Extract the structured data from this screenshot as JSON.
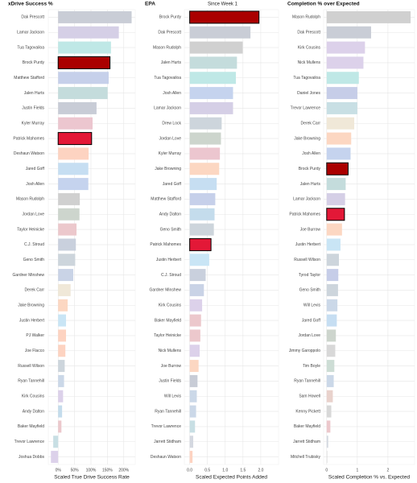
{
  "chart_data": [
    {
      "type": "bar",
      "orientation": "horizontal",
      "title": "xDrive Success %",
      "x_label": "Scaled True Drive Success Rate",
      "categories": [
        "Dak Prescott",
        "Lamar Jackson",
        "Tua Tagovailoa",
        "Brock Purdy",
        "Matthew Stafford",
        "Jalen Hurts",
        "Justin Fields",
        "Kyler Murray",
        "Patrick Mahomes",
        "Deshaun Watson",
        "Jared Goff",
        "Josh Allen",
        "Mason Rudolph",
        "Jordan Love",
        "Taylor Heinicke",
        "C.J. Stroud",
        "Geno Smith",
        "Gardner Minshew",
        "Derek Carr",
        "Jake Browning",
        "Justin Herbert",
        "PJ Walker",
        "Joe Flacco",
        "Russell Wilson",
        "Ryan Tannehill",
        "Kirk Cousins",
        "Andy Dalton",
        "Baker Mayfield",
        "Trevor Lawrence",
        "Joshua Dobbs"
      ],
      "values": [
        224,
        185,
        161,
        158,
        154,
        151,
        117,
        105,
        102,
        93,
        92,
        92,
        66,
        65,
        56,
        54,
        52,
        46,
        38,
        29,
        24,
        24,
        22,
        20,
        18,
        15,
        12,
        10,
        -15,
        -22
      ],
      "colors": [
        "#c9cdd6",
        "#d5cfe6",
        "#bfe8e6",
        "#aa0000",
        "#c6d0ea",
        "#c4dcdc",
        "#c8ccd6",
        "#ecc6cf",
        "#e31837",
        "#fdd3c1",
        "#c6def2",
        "#c5d3ee",
        "#d0d0d0",
        "#cdd5cd",
        "#ecc8cc",
        "#c9d0dd",
        "#cdd5dc",
        "#c9d3e6",
        "#f0e8d8",
        "#fcd7c2",
        "#c9e5f5",
        "#fdd3c1",
        "#fdd3c1",
        "#cdd5dc",
        "#cbd8e8",
        "#dcd1ea",
        "#c4dcec",
        "#ecc8cc",
        "#c8dfe4",
        "#dcd1ea"
      ],
      "highlight": [
        "Brock Purdy",
        "Patrick Mahomes"
      ],
      "xlim": [
        -30,
        235
      ],
      "xticks": [
        {
          "value": 0,
          "label": "0%"
        },
        {
          "value": 50,
          "label": "50%"
        },
        {
          "value": 100,
          "label": "100%"
        },
        {
          "value": 150,
          "label": "150%"
        },
        {
          "value": 200,
          "label": "200%"
        }
      ],
      "grid": true
    },
    {
      "type": "bar",
      "orientation": "horizontal",
      "title": "EPA",
      "subtitle": "Since Week 1",
      "x_label": "Scaled Expected Points Added",
      "categories": [
        "Brock Purdy",
        "Dak Prescott",
        "Mason Rudolph",
        "Jalen Hurts",
        "Tua Tagovailoa",
        "Josh Allen",
        "Lamar Jackson",
        "Drew Lock",
        "Jordan Love",
        "Kyler Murray",
        "Jake Browning",
        "Jared Goff",
        "Matthew Stafford",
        "Andy Dalton",
        "Geno Smith",
        "Patrick Mahomes",
        "Justin Herbert",
        "C.J. Stroud",
        "Gardner Minshew",
        "Kirk Cousins",
        "Baker Mayfield",
        "Taylor Heinicke",
        "Nick Mullens",
        "Joe Burrow",
        "Justin Fields",
        "Will Levis",
        "Ryan Tannehill",
        "Trevor Lawrence",
        "Jarrett Stidham",
        "Deshaun Watson"
      ],
      "values": [
        1.95,
        1.71,
        1.49,
        1.33,
        1.3,
        1.22,
        1.22,
        0.9,
        0.88,
        0.85,
        0.83,
        0.76,
        0.72,
        0.7,
        0.68,
        0.6,
        0.55,
        0.45,
        0.4,
        0.35,
        0.32,
        0.3,
        0.28,
        0.25,
        0.22,
        0.2,
        0.18,
        0.15,
        0.1,
        0.08
      ],
      "colors": [
        "#aa0000",
        "#c9cdd6",
        "#d0d0d0",
        "#c4dcdc",
        "#bfe8e6",
        "#c5d3ee",
        "#d5cfe6",
        "#cdd5dc",
        "#cdd5cd",
        "#ecc6cf",
        "#fcd7c2",
        "#c6def2",
        "#c6d0ea",
        "#c4dcec",
        "#cdd5dc",
        "#e31837",
        "#c9e5f5",
        "#c9d0dd",
        "#c9d3e6",
        "#dcd1ea",
        "#ecc8cc",
        "#ecc8cc",
        "#dcd1ea",
        "#fcd7c2",
        "#c8ccd6",
        "#cbd8e8",
        "#cbd8e8",
        "#c8dfe4",
        "#d4d8e0",
        "#fdd3c1"
      ],
      "highlight": [
        "Brock Purdy",
        "Patrick Mahomes"
      ],
      "xlim": [
        -0.15,
        2.5
      ],
      "xticks": [
        {
          "value": 0,
          "label": "0.0"
        },
        0.5,
        {
          "value": 1,
          "label": "1.0"
        },
        1.5,
        {
          "value": 2,
          "label": "2.0"
        }
      ],
      "grid": true
    },
    {
      "type": "bar",
      "orientation": "horizontal",
      "title": "Completion % over Expected",
      "x_label": "Scaled Completion % vs. Expected",
      "categories": [
        "Mason Rudolph",
        "Dak Prescott",
        "Kirk Cousins",
        "Nick Mullens",
        "Tua Tagovailoa",
        "Daniel Jones",
        "Trevor Lawrence",
        "Derek Carr",
        "Jake Browning",
        "Josh Allen",
        "Brock Purdy",
        "Jalen Hurts",
        "Lamar Jackson",
        "Patrick Mahomes",
        "Joe Burrow",
        "Justin Herbert",
        "Russell Wilson",
        "Tyrod Taylor",
        "Geno Smith",
        "Will Levis",
        "Jared Goff",
        "Jordan Love",
        "Jimmy Garoppolo",
        "Tim Boyle",
        "Ryan Tannehill",
        "Sam Howell",
        "Kenny Pickett",
        "Baker Mayfield",
        "Jarrett Stidham",
        "Mitchell Trubisky"
      ],
      "values": [
        2.74,
        1.45,
        1.25,
        1.2,
        1.05,
        1.0,
        1.0,
        0.9,
        0.8,
        0.78,
        0.7,
        0.62,
        0.6,
        0.58,
        0.5,
        0.45,
        0.4,
        0.38,
        0.37,
        0.35,
        0.33,
        0.3,
        0.28,
        0.25,
        0.23,
        0.2,
        0.15,
        0.12,
        0.05,
        0.02
      ],
      "colors": [
        "#d0d0d0",
        "#c9cdd6",
        "#dcd1ea",
        "#dcd1ea",
        "#bfe8e6",
        "#c6cde8",
        "#c8dfe4",
        "#f0e8d8",
        "#fcd7c2",
        "#c5d3ee",
        "#aa0000",
        "#c4dcdc",
        "#d5cfe6",
        "#e31837",
        "#fcd7c2",
        "#c9e5f5",
        "#cdd5dc",
        "#c6cde8",
        "#cdd5dc",
        "#cbd8e8",
        "#c6def2",
        "#cdd5cd",
        "#d8d8d8",
        "#cdddd5",
        "#cbd8e8",
        "#e9d2cc",
        "#d8d8d8",
        "#ecc8cc",
        "#d4d8e0",
        "#d8d8d8"
      ],
      "highlight": [
        "Brock Purdy",
        "Patrick Mahomes"
      ],
      "xlim": [
        -0.1,
        2.87
      ],
      "xticks": [
        0,
        1,
        2
      ],
      "grid": true
    }
  ]
}
